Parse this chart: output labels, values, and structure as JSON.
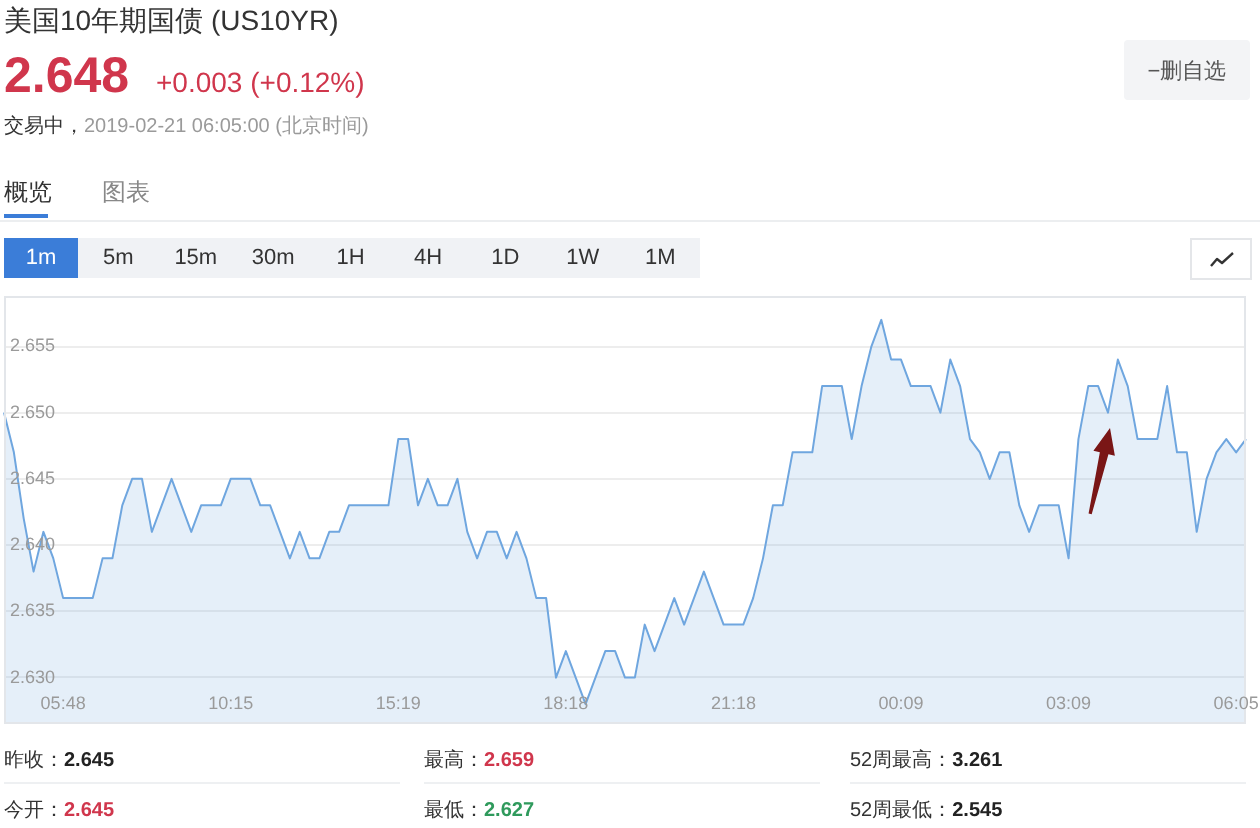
{
  "chart_data": {
    "type": "area",
    "title": "美国10年期国债 (US10YR)",
    "annotations": [
      "2.648",
      "+0.003 (+0.12%)",
      "交易中，",
      "2019-02-21 06:05:00 (北京时间)",
      "−删自选",
      "概览",
      "图表",
      "1m",
      "5m",
      "15m",
      "30m",
      "1H",
      "4H",
      "1D",
      "1W",
      "1M",
      "昨收：",
      "2.645",
      "最高：",
      "2.659",
      "52周最高：",
      "3.261",
      "今开：",
      "2.645",
      "最低：",
      "2.627",
      "52周最低：",
      "2.545"
    ],
    "categories": [
      null,
      null,
      null,
      null,
      null,
      null,
      "05:48",
      null,
      null,
      null,
      null,
      null,
      null,
      null,
      null,
      null,
      null,
      null,
      null,
      null,
      null,
      null,
      null,
      "10:15",
      null,
      null,
      null,
      null,
      null,
      null,
      null,
      null,
      null,
      null,
      null,
      null,
      null,
      null,
      null,
      null,
      "15:19",
      null,
      null,
      null,
      null,
      null,
      null,
      null,
      null,
      null,
      null,
      null,
      null,
      null,
      null,
      null,
      null,
      "18:18",
      null,
      null,
      null,
      null,
      null,
      null,
      null,
      null,
      null,
      null,
      null,
      null,
      null,
      null,
      null,
      null,
      "21:18",
      null,
      null,
      null,
      null,
      null,
      null,
      null,
      null,
      null,
      null,
      null,
      null,
      null,
      null,
      null,
      null,
      "00:09",
      null,
      null,
      null,
      null,
      null,
      null,
      null,
      null,
      null,
      null,
      null,
      null,
      null,
      null,
      null,
      null,
      "03:09",
      null,
      null,
      null,
      null,
      null,
      null,
      null,
      null,
      null,
      null,
      null,
      null,
      null,
      null,
      null,
      null,
      "06:05",
      null
    ],
    "values": [
      2.65,
      2.647,
      2.642,
      2.638,
      2.641,
      2.639,
      2.636,
      2.636,
      2.636,
      2.636,
      2.639,
      2.639,
      2.643,
      2.645,
      2.645,
      2.641,
      2.643,
      2.645,
      2.643,
      2.641,
      2.643,
      2.643,
      2.643,
      2.645,
      2.645,
      2.645,
      2.643,
      2.643,
      2.641,
      2.639,
      2.641,
      2.639,
      2.639,
      2.641,
      2.641,
      2.643,
      2.643,
      2.643,
      2.643,
      2.643,
      2.648,
      2.648,
      2.643,
      2.645,
      2.643,
      2.643,
      2.645,
      2.641,
      2.639,
      2.641,
      2.641,
      2.639,
      2.641,
      2.639,
      2.636,
      2.636,
      2.63,
      2.632,
      2.63,
      2.628,
      2.63,
      2.632,
      2.632,
      2.63,
      2.63,
      2.634,
      2.632,
      2.634,
      2.636,
      2.634,
      2.636,
      2.638,
      2.636,
      2.634,
      2.634,
      2.634,
      2.636,
      2.639,
      2.643,
      2.643,
      2.647,
      2.647,
      2.647,
      2.652,
      2.652,
      2.652,
      2.648,
      2.652,
      2.655,
      2.657,
      2.654,
      2.654,
      2.652,
      2.652,
      2.652,
      2.65,
      2.654,
      2.652,
      2.648,
      2.647,
      2.645,
      2.647,
      2.647,
      2.643,
      2.641,
      2.643,
      2.643,
      2.643,
      2.639,
      2.648,
      2.652,
      2.652,
      2.65,
      2.654,
      2.652,
      2.648,
      2.648,
      2.648,
      2.652,
      2.647,
      2.647,
      2.641,
      2.645,
      2.647,
      2.648,
      2.647,
      2.648
    ],
    "color": "#6fa6df",
    "ylim": [
      2.6265,
      2.6588
    ],
    "yticks": [
      {
        "value": 2.63,
        "label": "2.630"
      },
      2.635,
      {
        "value": 2.64,
        "label": "2.640"
      },
      2.645,
      {
        "value": 2.65,
        "label": "2.650"
      },
      2.655
    ],
    "grid": "y"
  }
}
